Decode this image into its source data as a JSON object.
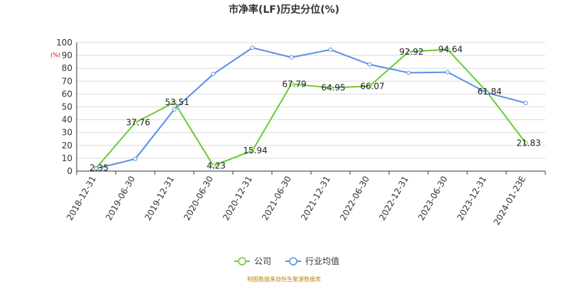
{
  "chart_data": {
    "type": "line",
    "title": "市净率(LF)历史分位(%)",
    "ylabel": "(%)",
    "xlabel": "",
    "ylim": [
      0,
      100
    ],
    "yticks": [
      0,
      10,
      20,
      30,
      40,
      50,
      60,
      70,
      80,
      90,
      100
    ],
    "categories": [
      "2018-12-31",
      "2019-06-30",
      "2019-12-31",
      "2020-06-30",
      "2020-12-31",
      "2021-06-30",
      "2021-12-31",
      "2022-06-30",
      "2022-12-31",
      "2023-06-30",
      "2023-12-31",
      "2024-01-23E"
    ],
    "series": [
      {
        "name": "公司",
        "color": "#66cc33",
        "values": [
          2.35,
          37.76,
          53.51,
          4.23,
          15.94,
          67.79,
          64.95,
          66.07,
          92.92,
          94.64,
          61.84,
          21.83
        ],
        "labels": [
          "2.35",
          "37.76",
          "53.51",
          "4.23",
          "15.94",
          "67.79",
          "64.95",
          "66.07",
          "92.92",
          "94.64",
          "61.84",
          "21.83"
        ]
      },
      {
        "name": "行业均值",
        "color": "#5b8ee6",
        "values": [
          2.0,
          9.5,
          48.0,
          75.5,
          96.0,
          88.5,
          94.5,
          83.0,
          76.5,
          77.0,
          61.0,
          53.0
        ]
      }
    ],
    "grid": true,
    "legend_position": "bottom-center"
  },
  "source_note": "制图数据来自恒生聚源数据库"
}
